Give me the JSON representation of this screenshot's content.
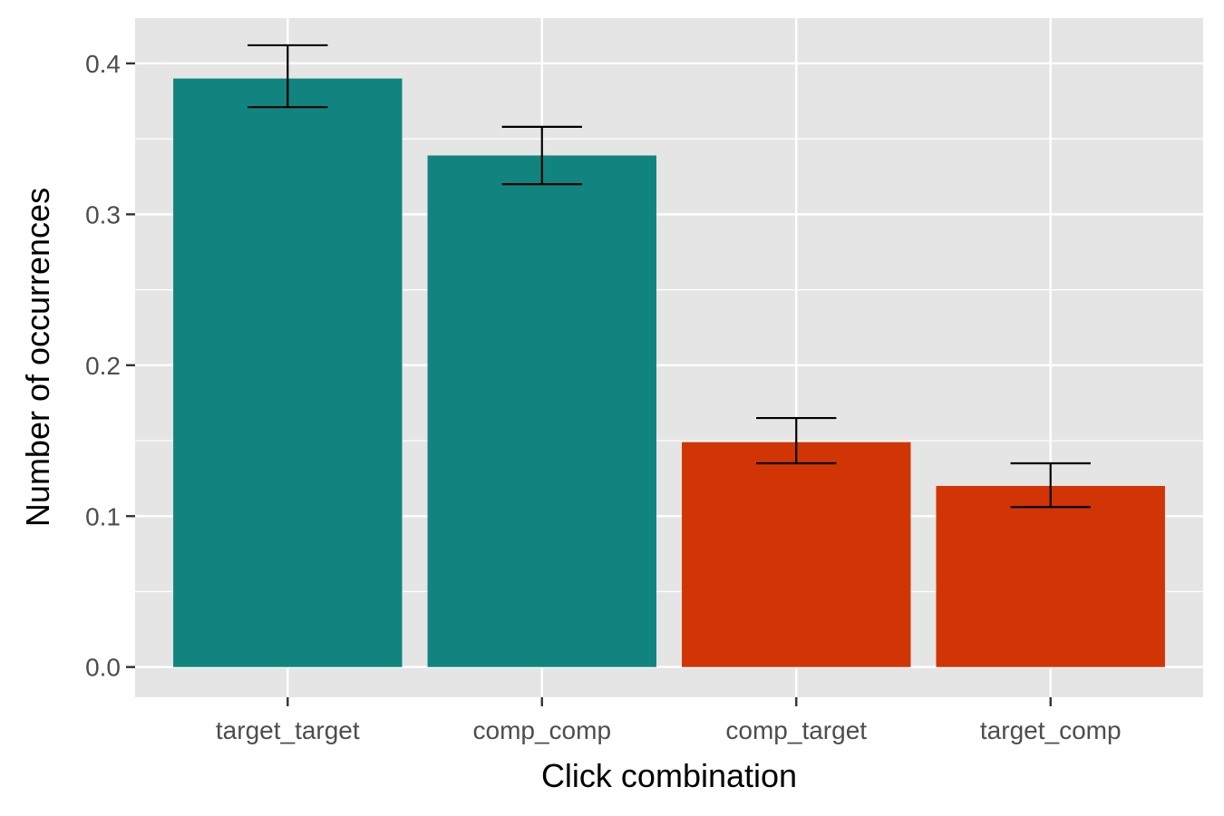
{
  "chart_data": {
    "type": "bar",
    "title": "",
    "xlabel": "Click combination",
    "ylabel": "Number of occurrences",
    "categories": [
      "target_target",
      "comp_comp",
      "comp_target",
      "target_comp"
    ],
    "values": [
      0.39,
      0.339,
      0.149,
      0.12
    ],
    "error_low": [
      0.371,
      0.32,
      0.135,
      0.106
    ],
    "error_high": [
      0.412,
      0.358,
      0.165,
      0.135
    ],
    "bar_colors": [
      "#128480",
      "#128480",
      "#D13505",
      "#D13505"
    ],
    "ylim": [
      -0.02,
      0.43
    ],
    "yticks": [
      0.0,
      0.1,
      0.2,
      0.3,
      0.4
    ],
    "ytick_labels": [
      "0.0",
      "0.1",
      "0.2",
      "0.3",
      "0.4"
    ],
    "grid": true,
    "legend": "none",
    "panel_background": "#E5E5E5",
    "grid_color": "#FFFFFF",
    "errorbar_color": "#000000"
  }
}
